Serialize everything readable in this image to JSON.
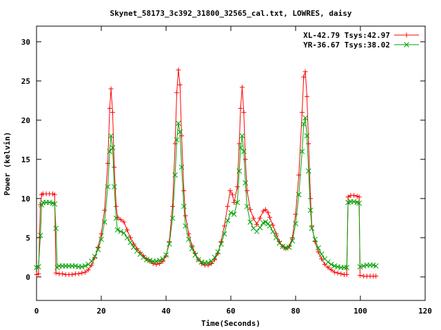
{
  "chart_data": {
    "type": "line",
    "title": "Skynet_58173_3c392_31800_32565_cal.txt, LOWRES, daisy",
    "xlabel": "Time(Seconds)",
    "ylabel": "Power (kelvin)",
    "xlim": [
      0,
      120
    ],
    "ylim": [
      -3,
      32
    ],
    "xticks": [
      0,
      20,
      40,
      60,
      80,
      100,
      120
    ],
    "yticks": [
      0,
      5,
      10,
      15,
      20,
      25,
      30
    ],
    "xtick_labels": [
      "0",
      "20",
      "40",
      "60",
      "80",
      "100",
      "120"
    ],
    "ytick_labels": [
      "0",
      "5",
      "10",
      "15",
      "20",
      "25",
      "30"
    ],
    "legend_position": "top-right",
    "grid": false,
    "series": [
      {
        "name": "XL-42.79 Tsys:42.97",
        "color": "#ff0000",
        "marker": "plus",
        "points": [
          [
            0.0,
            0.3
          ],
          [
            0.6,
            0.4
          ],
          [
            1.2,
            9.2
          ],
          [
            1.6,
            10.5
          ],
          [
            2,
            10.6
          ],
          [
            3,
            10.6
          ],
          [
            4,
            10.6
          ],
          [
            5,
            10.6
          ],
          [
            5.6,
            10.5
          ],
          [
            6.0,
            0.5
          ],
          [
            7,
            0.4
          ],
          [
            8,
            0.4
          ],
          [
            9,
            0.3
          ],
          [
            10,
            0.3
          ],
          [
            11,
            0.3
          ],
          [
            12,
            0.4
          ],
          [
            13,
            0.4
          ],
          [
            14,
            0.5
          ],
          [
            15,
            0.6
          ],
          [
            16,
            0.9
          ],
          [
            17,
            1.5
          ],
          [
            18,
            2.5
          ],
          [
            19,
            3.8
          ],
          [
            20,
            5.5
          ],
          [
            21,
            8.5
          ],
          [
            22,
            14.5
          ],
          [
            22.6,
            21.5
          ],
          [
            23,
            24.0
          ],
          [
            23.5,
            21.0
          ],
          [
            24,
            14.0
          ],
          [
            24.6,
            9.0
          ],
          [
            25,
            7.6
          ],
          [
            26,
            7.3
          ],
          [
            27,
            7.0
          ],
          [
            28,
            6.0
          ],
          [
            29,
            5.0
          ],
          [
            30,
            4.2
          ],
          [
            31,
            3.6
          ],
          [
            32,
            3.1
          ],
          [
            33,
            2.7
          ],
          [
            34,
            2.3
          ],
          [
            35,
            2.0
          ],
          [
            36,
            1.7
          ],
          [
            37,
            1.6
          ],
          [
            38,
            1.7
          ],
          [
            39,
            2.0
          ],
          [
            40,
            2.7
          ],
          [
            41,
            4.5
          ],
          [
            42,
            9.0
          ],
          [
            42.8,
            17.0
          ],
          [
            43.3,
            23.5
          ],
          [
            43.8,
            26.4
          ],
          [
            44.3,
            24.5
          ],
          [
            44.8,
            18.0
          ],
          [
            45.5,
            11.0
          ],
          [
            46,
            7.8
          ],
          [
            47,
            5.5
          ],
          [
            48,
            4.0
          ],
          [
            49,
            3.0
          ],
          [
            50,
            2.2
          ],
          [
            51,
            1.7
          ],
          [
            52,
            1.5
          ],
          [
            53,
            1.5
          ],
          [
            54,
            1.7
          ],
          [
            55,
            2.2
          ],
          [
            56,
            3.0
          ],
          [
            57,
            4.5
          ],
          [
            58,
            6.5
          ],
          [
            59,
            9.0
          ],
          [
            59.8,
            11.0
          ],
          [
            60.5,
            10.5
          ],
          [
            61,
            9.5
          ],
          [
            62,
            11.5
          ],
          [
            62.6,
            17.0
          ],
          [
            63,
            21.5
          ],
          [
            63.5,
            24.2
          ],
          [
            64,
            21.0
          ],
          [
            64.5,
            15.0
          ],
          [
            65,
            11.0
          ],
          [
            66,
            8.6
          ],
          [
            67,
            7.5
          ],
          [
            68,
            6.7
          ],
          [
            69,
            7.5
          ],
          [
            70,
            8.4
          ],
          [
            70.7,
            8.6
          ],
          [
            71.5,
            8.2
          ],
          [
            72,
            7.6
          ],
          [
            73,
            6.6
          ],
          [
            74,
            5.5
          ],
          [
            75,
            4.5
          ],
          [
            76,
            3.9
          ],
          [
            77,
            3.6
          ],
          [
            78,
            3.9
          ],
          [
            79,
            5.0
          ],
          [
            80,
            8.0
          ],
          [
            81,
            13.0
          ],
          [
            82,
            21.0
          ],
          [
            82.5,
            25.5
          ],
          [
            83,
            26.2
          ],
          [
            83.5,
            23.0
          ],
          [
            84,
            17.0
          ],
          [
            84.6,
            10.0
          ],
          [
            85,
            6.5
          ],
          [
            86,
            4.5
          ],
          [
            87,
            3.2
          ],
          [
            88,
            2.3
          ],
          [
            89,
            1.6
          ],
          [
            90,
            1.2
          ],
          [
            91,
            0.9
          ],
          [
            92,
            0.6
          ],
          [
            93,
            0.5
          ],
          [
            94,
            0.4
          ],
          [
            95,
            0.3
          ],
          [
            95.8,
            0.3
          ],
          [
            96.2,
            10.2
          ],
          [
            97,
            10.4
          ],
          [
            98,
            10.4
          ],
          [
            99,
            10.3
          ],
          [
            99.6,
            10.2
          ],
          [
            99.9,
            0.2
          ],
          [
            101,
            0.1
          ],
          [
            102,
            0.1
          ],
          [
            103,
            0.1
          ],
          [
            104,
            0.1
          ],
          [
            104.8,
            0.1
          ]
        ]
      },
      {
        "name": "YR-36.67 Tsys:38.02",
        "color": "#00a000",
        "marker": "x",
        "points": [
          [
            0.0,
            1.2
          ],
          [
            0.6,
            1.3
          ],
          [
            1.2,
            5.3
          ],
          [
            1.6,
            9.2
          ],
          [
            2,
            9.5
          ],
          [
            3,
            9.5
          ],
          [
            4,
            9.5
          ],
          [
            5,
            9.4
          ],
          [
            5.6,
            9.3
          ],
          [
            6.0,
            6.2
          ],
          [
            6.4,
            1.2
          ],
          [
            7,
            1.4
          ],
          [
            8,
            1.4
          ],
          [
            9,
            1.4
          ],
          [
            10,
            1.4
          ],
          [
            11,
            1.4
          ],
          [
            12,
            1.4
          ],
          [
            13,
            1.3
          ],
          [
            14,
            1.3
          ],
          [
            15,
            1.4
          ],
          [
            16,
            1.6
          ],
          [
            17,
            2.0
          ],
          [
            18,
            2.6
          ],
          [
            19,
            3.5
          ],
          [
            20,
            4.8
          ],
          [
            21,
            7.0
          ],
          [
            22,
            11.5
          ],
          [
            22.6,
            16.0
          ],
          [
            23,
            18.0
          ],
          [
            23.5,
            16.5
          ],
          [
            24,
            11.5
          ],
          [
            24.6,
            7.5
          ],
          [
            25,
            6.0
          ],
          [
            26,
            5.8
          ],
          [
            27,
            5.6
          ],
          [
            28,
            5.0
          ],
          [
            29,
            4.4
          ],
          [
            30,
            3.8
          ],
          [
            31,
            3.3
          ],
          [
            32,
            2.9
          ],
          [
            33,
            2.5
          ],
          [
            34,
            2.2
          ],
          [
            35,
            2.1
          ],
          [
            36,
            2.0
          ],
          [
            37,
            2.0
          ],
          [
            38,
            2.1
          ],
          [
            39,
            2.3
          ],
          [
            40,
            2.8
          ],
          [
            41,
            4.2
          ],
          [
            42,
            7.5
          ],
          [
            42.8,
            13.0
          ],
          [
            43.3,
            17.5
          ],
          [
            43.8,
            19.6
          ],
          [
            44.3,
            18.5
          ],
          [
            44.8,
            14.0
          ],
          [
            45.5,
            9.0
          ],
          [
            46,
            6.5
          ],
          [
            47,
            4.8
          ],
          [
            48,
            3.6
          ],
          [
            49,
            2.8
          ],
          [
            50,
            2.2
          ],
          [
            51,
            1.9
          ],
          [
            52,
            1.8
          ],
          [
            53,
            1.8
          ],
          [
            54,
            2.0
          ],
          [
            55,
            2.5
          ],
          [
            56,
            3.2
          ],
          [
            57,
            4.2
          ],
          [
            58,
            5.5
          ],
          [
            59,
            7.2
          ],
          [
            60,
            8.2
          ],
          [
            61,
            8.0
          ],
          [
            62,
            9.5
          ],
          [
            62.6,
            13.5
          ],
          [
            63,
            16.5
          ],
          [
            63.5,
            18.0
          ],
          [
            64,
            16.0
          ],
          [
            64.5,
            12.0
          ],
          [
            65,
            9.0
          ],
          [
            66,
            7.0
          ],
          [
            67,
            6.2
          ],
          [
            68,
            5.8
          ],
          [
            69,
            6.3
          ],
          [
            70,
            6.9
          ],
          [
            70.7,
            7.0
          ],
          [
            71.5,
            6.8
          ],
          [
            72,
            6.5
          ],
          [
            73,
            5.8
          ],
          [
            74,
            5.0
          ],
          [
            75,
            4.3
          ],
          [
            76,
            3.9
          ],
          [
            77,
            3.7
          ],
          [
            78,
            3.8
          ],
          [
            79,
            4.6
          ],
          [
            80,
            6.8
          ],
          [
            81,
            10.5
          ],
          [
            82,
            16.0
          ],
          [
            82.5,
            19.5
          ],
          [
            83,
            20.3
          ],
          [
            83.5,
            18.0
          ],
          [
            84,
            13.5
          ],
          [
            84.6,
            8.5
          ],
          [
            85,
            6.2
          ],
          [
            86,
            4.8
          ],
          [
            87,
            3.7
          ],
          [
            88,
            2.9
          ],
          [
            89,
            2.3
          ],
          [
            90,
            1.9
          ],
          [
            91,
            1.6
          ],
          [
            92,
            1.4
          ],
          [
            93,
            1.3
          ],
          [
            94,
            1.2
          ],
          [
            95,
            1.2
          ],
          [
            95.8,
            1.2
          ],
          [
            96.2,
            9.5
          ],
          [
            97,
            9.6
          ],
          [
            98,
            9.6
          ],
          [
            99,
            9.5
          ],
          [
            99.6,
            9.4
          ],
          [
            99.9,
            1.3
          ],
          [
            101,
            1.4
          ],
          [
            102,
            1.5
          ],
          [
            103,
            1.5
          ],
          [
            104,
            1.5
          ],
          [
            104.8,
            1.4
          ]
        ]
      }
    ]
  }
}
